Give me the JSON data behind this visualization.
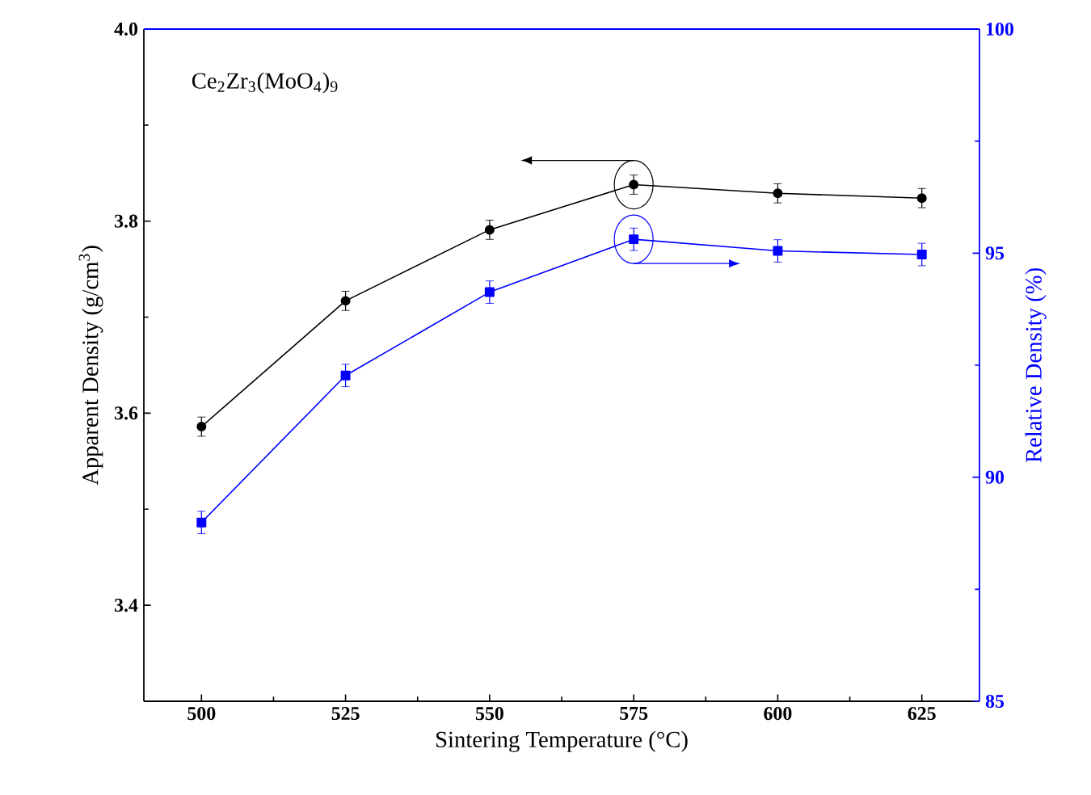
{
  "chart_data": {
    "type": "line",
    "xlabel": "Sintering Temperature  (°C)",
    "ylabel": "Apparent Density (g/cm$^{3}$)",
    "y2label": "Relative Density (%)",
    "annotations": [
      "Ce$_{2}$Zr$_{3}$(MoO$_{4}$)$_{9}$"
    ],
    "x": [
      500,
      525,
      550,
      575,
      600,
      625
    ],
    "xlim": [
      490,
      635
    ],
    "xticks": [
      500,
      525,
      550,
      575,
      600,
      625
    ],
    "ylim": [
      3.3,
      4.0
    ],
    "yticks": [
      3.4,
      3.6,
      3.8,
      {
        "value": 4.0,
        "label": "4.0"
      }
    ],
    "y2lim": [
      85,
      100
    ],
    "y2ticks": [
      85,
      90,
      95,
      100
    ],
    "series": [
      {
        "color": "#000000",
        "marker": "circle",
        "values": [
          3.586,
          3.717,
          3.791,
          3.838,
          3.829,
          3.824
        ],
        "errors": [
          0.01,
          0.01,
          0.01,
          0.01,
          0.01,
          0.01
        ]
      },
      {
        "color": "#0000ff",
        "marker": "square",
        "axis": "y2",
        "values": [
          88.99,
          92.27,
          94.13,
          95.31,
          95.05,
          94.97
        ],
        "errors": [
          0.25,
          0.25,
          0.25,
          0.25,
          0.25,
          0.25
        ]
      }
    ]
  }
}
